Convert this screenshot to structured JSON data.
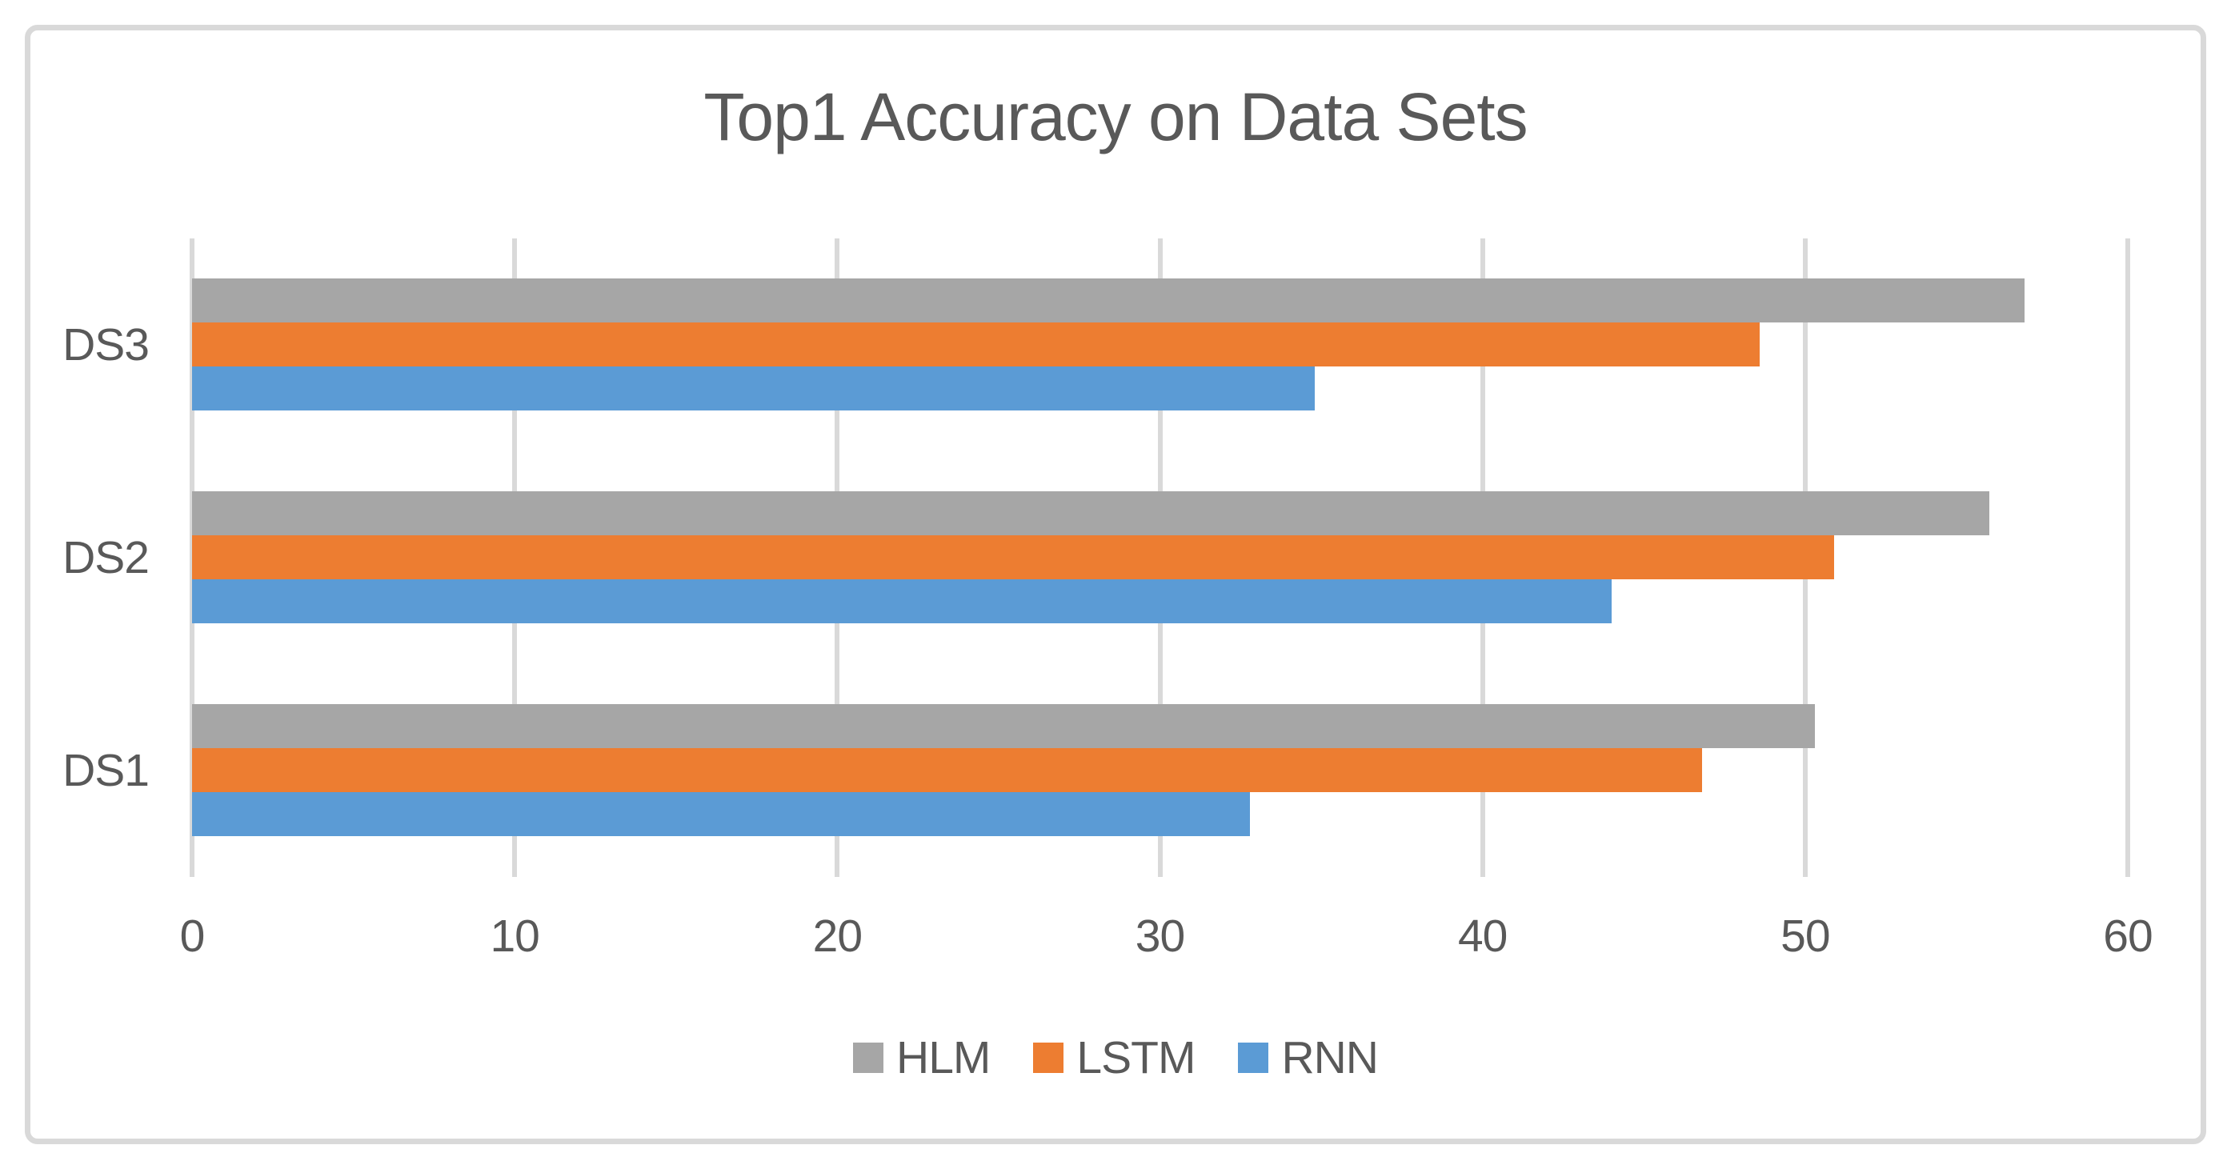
{
  "chart_data": {
    "type": "bar",
    "orientation": "horizontal",
    "title": "Top1 Accuracy on Data Sets",
    "categories": [
      "DS1",
      "DS2",
      "DS3"
    ],
    "categories_display_top_to_bottom": [
      "DS3",
      "DS2",
      "DS1"
    ],
    "series": [
      {
        "name": "HLM",
        "color": "#a6a6a6",
        "values": [
          50.3,
          55.7,
          56.8
        ]
      },
      {
        "name": "LSTM",
        "color": "#ed7d31",
        "values": [
          46.8,
          50.9,
          48.6
        ]
      },
      {
        "name": "RNN",
        "color": "#5b9bd5",
        "values": [
          32.8,
          44.0,
          34.8
        ]
      }
    ],
    "x_ticks": [
      0,
      10,
      20,
      30,
      40,
      50,
      60
    ],
    "xlim": [
      0,
      60
    ],
    "grid": "vertical-on",
    "legend_position": "bottom",
    "legend": [
      "HLM",
      "LSTM",
      "RNN"
    ],
    "colors": {
      "gridline": "#d9d9d9",
      "frame_border": "#d9d9d9",
      "text": "#595959",
      "background": "#ffffff"
    }
  }
}
